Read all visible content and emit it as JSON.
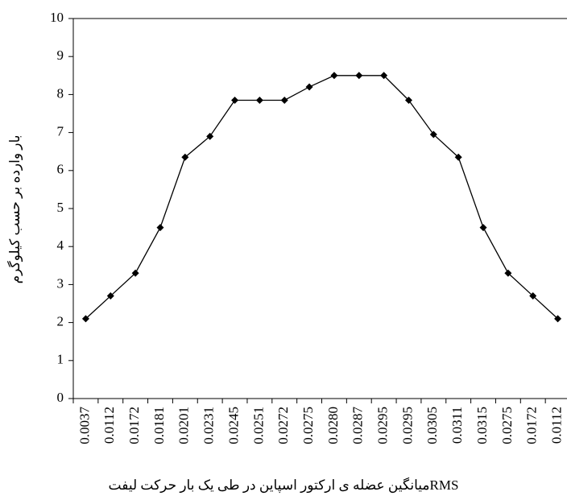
{
  "chart_data": {
    "type": "line",
    "x_label": "RMSمیانگین عضله ی ارکتور اسپاین در طی یک بار حرکت لیفت",
    "y_label": "بار وارده بر حسب کیلوگرم",
    "categories": [
      "0.0037",
      "0.0112",
      "0.0172",
      "0.0181",
      "0.0201",
      "0.0231",
      "0.0245",
      "0.0251",
      "0.0272",
      "0.0275",
      "0.0280",
      "0.0287",
      "0.0295",
      "0.0295",
      "0.0305",
      "0.0311",
      "0.0315",
      "0.0275",
      "0.0172",
      "0.0112"
    ],
    "values": [
      2.1,
      2.7,
      3.3,
      4.5,
      6.35,
      6.9,
      7.85,
      7.85,
      7.85,
      8.2,
      8.5,
      8.5,
      8.5,
      7.85,
      6.95,
      6.35,
      4.5,
      3.3,
      2.7,
      2.1
    ],
    "color": "#000000",
    "ylim": [
      0,
      10
    ],
    "yticks": [
      0,
      1,
      2,
      3,
      4,
      5,
      6,
      7,
      8,
      9,
      10
    ]
  }
}
